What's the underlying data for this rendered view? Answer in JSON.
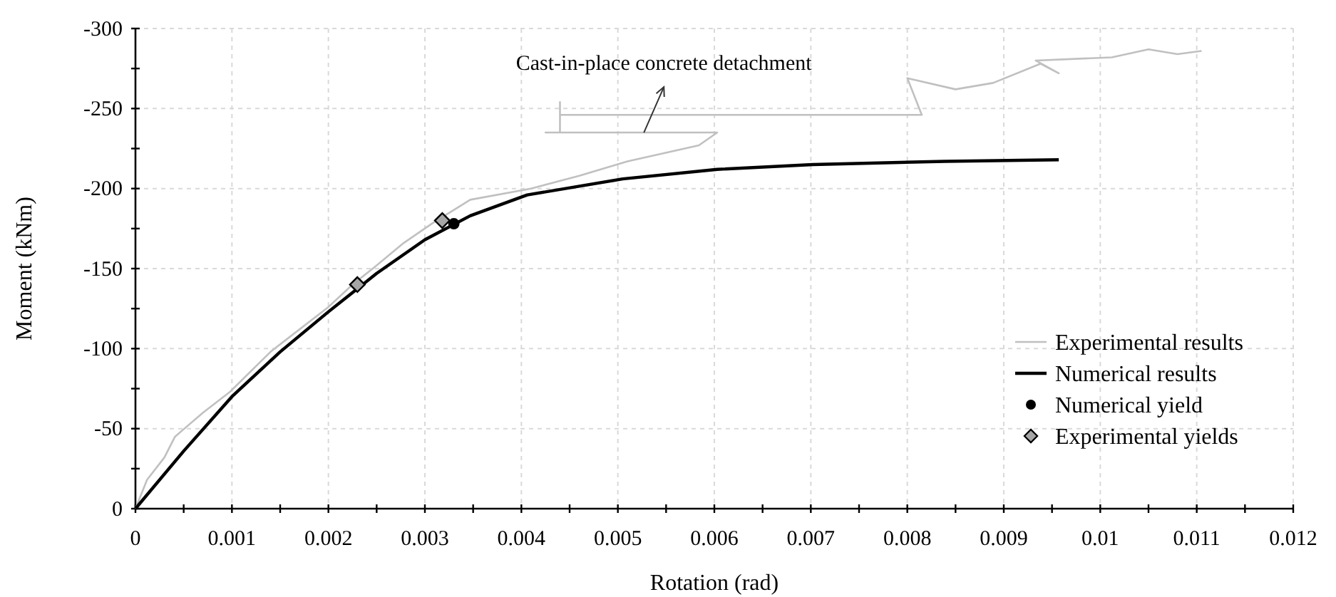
{
  "chart_data": {
    "type": "line",
    "xlabel": "Rotation (rad)",
    "ylabel": "Moment (kNm)",
    "xlim": [
      0,
      0.012
    ],
    "xticks": [
      0,
      {
        "value": 0.0005,
        "label": null
      },
      0.001,
      {
        "value": 0.0015,
        "label": null
      },
      0.002,
      {
        "value": 0.0025,
        "label": null
      },
      0.003,
      {
        "value": 0.0035,
        "label": null
      },
      0.004,
      {
        "value": 0.0045,
        "label": null
      },
      0.005,
      {
        "value": 0.0055,
        "label": null
      },
      0.006,
      {
        "value": 0.0065,
        "label": null
      },
      0.007,
      {
        "value": 0.0075,
        "label": null
      },
      0.008,
      {
        "value": 0.0085,
        "label": null
      },
      0.009,
      {
        "value": 0.0095,
        "label": null
      },
      0.01,
      {
        "value": 0.0105,
        "label": null
      },
      0.011,
      {
        "value": 0.0115,
        "label": null
      },
      0.012
    ],
    "ylim": [
      0,
      -300
    ],
    "yticks": [
      0,
      {
        "value": -25,
        "label": null
      },
      -50,
      {
        "value": -75,
        "label": null
      },
      -100,
      {
        "value": -125,
        "label": null
      },
      -150,
      {
        "value": -175,
        "label": null
      },
      -200,
      {
        "value": -225,
        "label": null
      },
      -250,
      {
        "value": -275,
        "label": null
      },
      -300
    ],
    "grid": true,
    "legend": "bottom right",
    "series": [
      {
        "name": "Experimental results",
        "color": "#c0c0c0",
        "marker": "none",
        "x": [
          0,
          0.00012,
          0.0003,
          0.00041,
          0.0007,
          0.00098,
          0.0014,
          0.0017,
          0.002,
          0.00225,
          0.00248,
          0.00278,
          0.00307,
          0.00347,
          0.0041,
          0.0046,
          0.0051,
          0.00584,
          0.00603,
          0.00425,
          0.0044,
          0.0044,
          0.0044,
          0.006,
          0.00815,
          0.008,
          0.0085,
          0.00889,
          0.00938,
          0.00957,
          0.00933,
          0.01012,
          0.0105,
          0.0108,
          0.01105
        ],
        "values": [
          0,
          -18,
          -32,
          -45,
          -60,
          -73,
          -98,
          -112,
          -126,
          -140,
          -151,
          -166,
          -178,
          -193,
          -200,
          -208,
          -217,
          -227,
          -235,
          -235,
          -235,
          -254,
          -246,
          -246,
          -246,
          -269,
          -262,
          -266,
          -278,
          -272,
          -280,
          -282,
          -287,
          -284,
          -286
        ]
      },
      {
        "name": "Numerical results",
        "color": "#000000",
        "marker": "none",
        "x": [
          0,
          0.0005,
          0.001,
          0.0015,
          0.002,
          0.0025,
          0.003,
          0.00347,
          0.00406,
          0.00505,
          0.00603,
          0.00702,
          0.00839,
          0.00957
        ],
        "values": [
          0,
          -36,
          -70,
          -98,
          -123,
          -147,
          -168,
          -183,
          -196,
          -206,
          -212,
          -215,
          -217,
          -218
        ]
      },
      {
        "name": "Numerical yield",
        "type": "scatter",
        "color": "#000000",
        "marker": "circle",
        "x": [
          0.0033
        ],
        "values": [
          -178
        ]
      },
      {
        "name": "Experimental yields",
        "type": "scatter",
        "color": "#a6a6a6",
        "marker": "diamond",
        "x": [
          0.0023,
          0.00318
        ],
        "values": [
          -140,
          -180
        ]
      }
    ],
    "annotations": [
      {
        "text": "Cast-in-place concrete detachment",
        "x": 0.00527,
        "y": -235
      }
    ]
  }
}
